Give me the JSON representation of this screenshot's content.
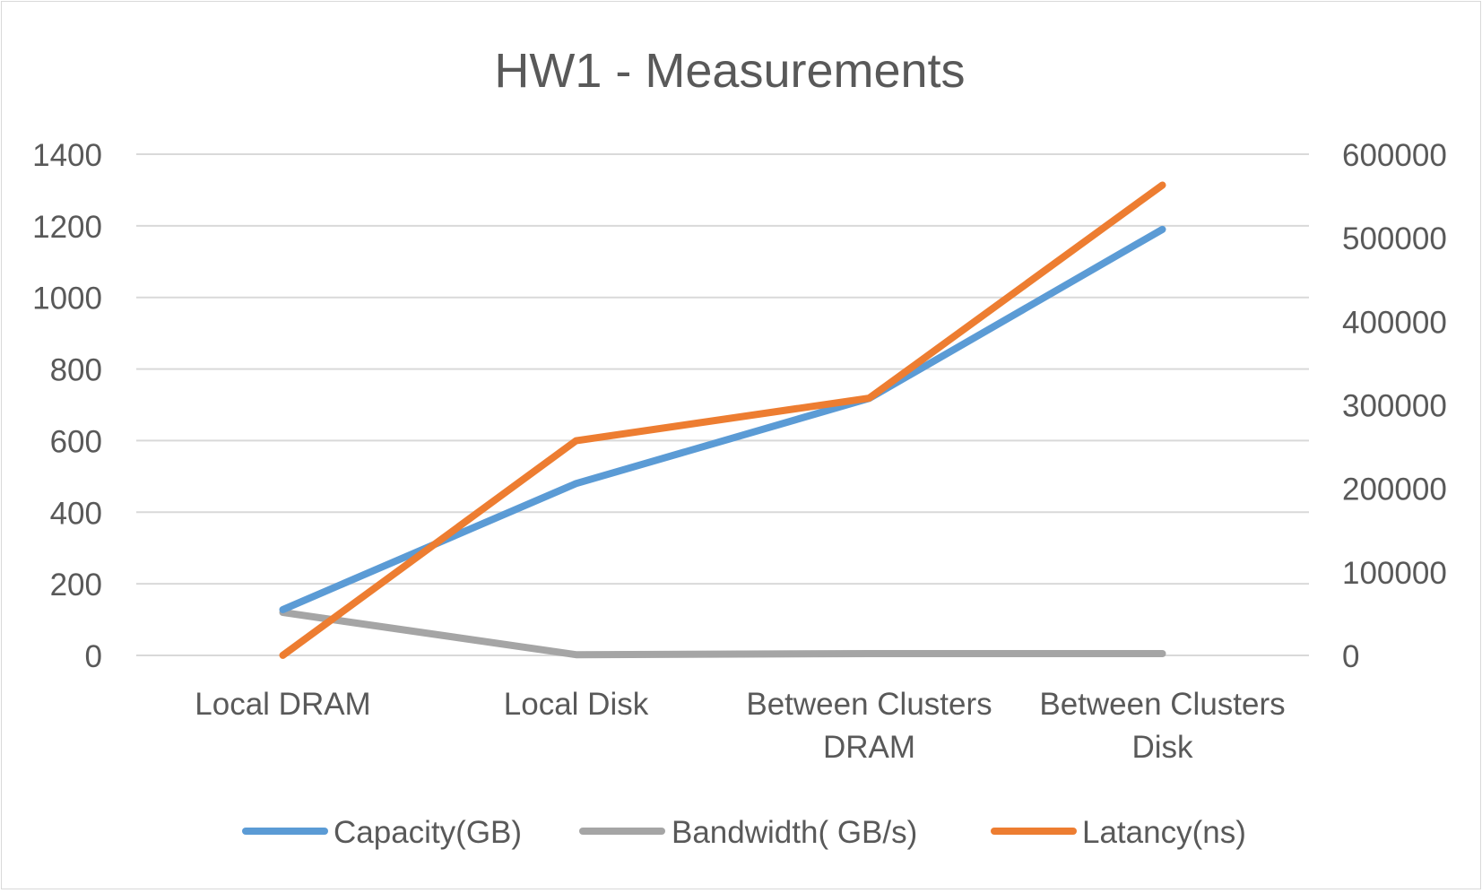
{
  "chart_data": {
    "type": "line",
    "title": "HW1 - Measurements",
    "categories": [
      [
        "Local DRAM"
      ],
      [
        "Local Disk"
      ],
      [
        "Between Clusters",
        "DRAM"
      ],
      [
        "Between Clusters",
        "Disk"
      ]
    ],
    "y_left": {
      "ticks": [
        "0",
        "200",
        "400",
        "600",
        "800",
        "1000",
        "1200",
        "1400"
      ],
      "min": 0,
      "max": 1400
    },
    "y_right": {
      "ticks": [
        "0",
        "100000",
        "200000",
        "300000",
        "400000",
        "500000",
        "600000"
      ],
      "min": 0,
      "max": 600000
    },
    "grid": true,
    "legend_position": "bottom",
    "series": [
      {
        "name": "Capacity(GB)",
        "axis": "left",
        "color": "#5b9bd5",
        "values": [
          128,
          480,
          718,
          1190
        ]
      },
      {
        "name": "Bandwidth( GB/s)",
        "axis": "left",
        "color": "#a5a5a5",
        "values": [
          120,
          2,
          5,
          5
        ]
      },
      {
        "name": "Latancy(ns)",
        "axis": "right",
        "color": "#ed7d31",
        "values": [
          100,
          257000,
          308000,
          563000
        ]
      }
    ]
  }
}
